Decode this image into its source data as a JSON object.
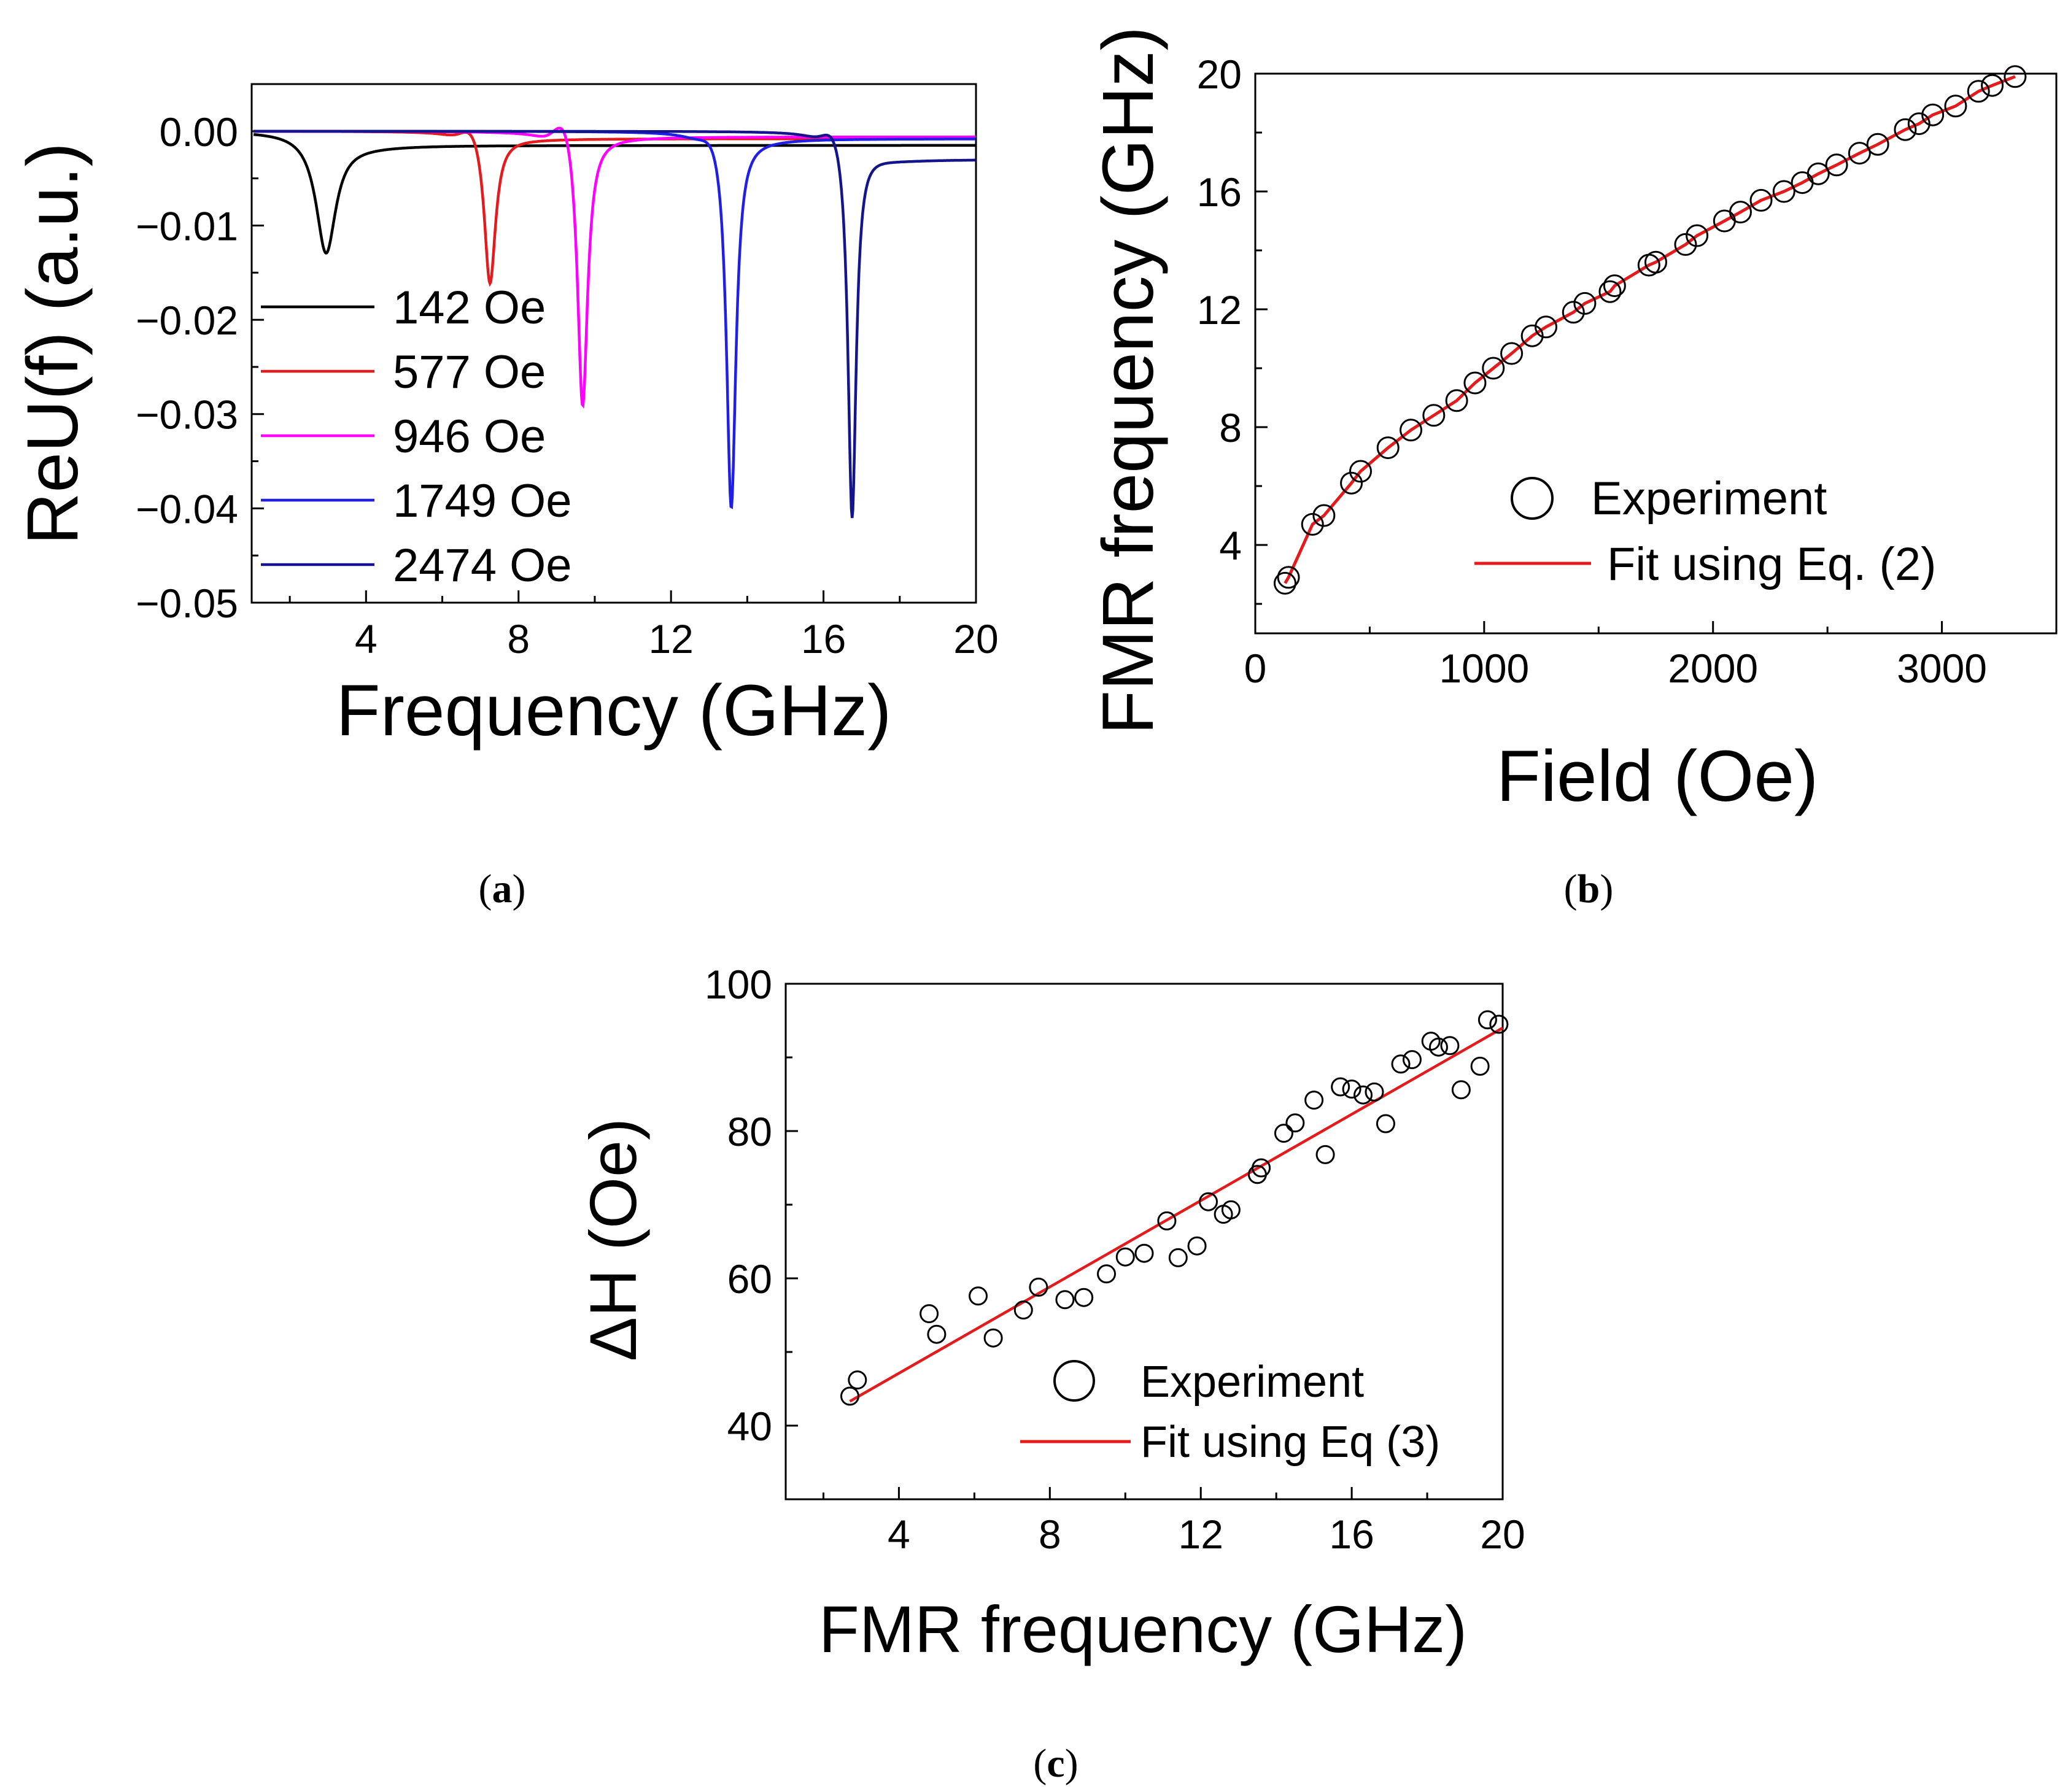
{
  "chart_data": [
    {
      "panel": "(a)",
      "type": "line",
      "xlabel": "Frequency (GHz)",
      "ylabel": "ReU(f) (a.u.)",
      "xlim": [
        1,
        20
      ],
      "ylim": [
        -0.05,
        0.005
      ],
      "xticks": [
        "4",
        "8",
        "12",
        "16",
        "20"
      ],
      "yticks": [
        "0.00",
        "−0.01",
        "−0.02",
        "−0.03",
        "−0.04",
        "−0.05"
      ],
      "series": [
        {
          "name": "142 Oe",
          "color": "#000000",
          "f0": 2.95,
          "width": 0.32,
          "depth": 0.0125,
          "overshoot": 0.0,
          "tail": -0.0015
        },
        {
          "name": "577 Oe",
          "color": "#e41a1c",
          "f0": 7.25,
          "width": 0.18,
          "depth": 0.0162,
          "overshoot": 0.0015,
          "tail": -0.0008
        },
        {
          "name": "946 Oe",
          "color": "#ff00ff",
          "f0": 9.68,
          "width": 0.16,
          "depth": 0.0295,
          "overshoot": 0.0028,
          "tail": -0.0006
        },
        {
          "name": "1749 Oe",
          "color": "#1f1fe6",
          "f0": 13.58,
          "width": 0.15,
          "depth": 0.04,
          "overshoot": 0.0012,
          "tail": -0.0008
        },
        {
          "name": "2474 Oe",
          "color": "#14148c",
          "f0": 16.75,
          "width": 0.13,
          "depth": 0.0405,
          "overshoot": 0.0018,
          "tail": -0.003
        }
      ]
    },
    {
      "panel": "(b)",
      "type": "scatter",
      "xlabel": "Field (Oe)",
      "ylabel": "FMR frequency (GHz)",
      "xlim": [
        0,
        3500
      ],
      "ylim": [
        1,
        20
      ],
      "xticks": [
        "0",
        "1000",
        "2000",
        "3000"
      ],
      "yticks": [
        "4",
        "8",
        "12",
        "16",
        "20"
      ],
      "legend": [
        "Experiment",
        "Fit using Eq. (2)"
      ],
      "fit_color": "#e41a1c",
      "x": [
        130,
        145,
        250,
        300,
        420,
        460,
        580,
        680,
        780,
        880,
        960,
        1040,
        1120,
        1210,
        1270,
        1390,
        1440,
        1550,
        1570,
        1720,
        1750,
        1880,
        1930,
        2050,
        2120,
        2210,
        2310,
        2390,
        2460,
        2540,
        2640,
        2720,
        2840,
        2900,
        2960,
        3060,
        3160,
        3220,
        3320
      ],
      "y": [
        2.7,
        2.9,
        4.7,
        5.0,
        6.1,
        6.5,
        7.3,
        7.9,
        8.4,
        8.9,
        9.5,
        10.0,
        10.5,
        11.1,
        11.4,
        11.9,
        12.2,
        12.6,
        12.8,
        13.5,
        13.6,
        14.2,
        14.5,
        15.0,
        15.3,
        15.7,
        16.0,
        16.3,
        16.6,
        16.9,
        17.3,
        17.6,
        18.1,
        18.3,
        18.6,
        18.9,
        19.4,
        19.6,
        19.9
      ]
    },
    {
      "panel": "(c)",
      "type": "scatter",
      "xlabel": "FMR frequency (GHz)",
      "ylabel": "ΔH (Oe)",
      "xlim": [
        1,
        20
      ],
      "ylim": [
        30,
        100
      ],
      "xticks": [
        "4",
        "8",
        "12",
        "16",
        "20"
      ],
      "yticks": [
        "40",
        "60",
        "80",
        "100"
      ],
      "legend": [
        "Experiment",
        "Fit using Eq (3)"
      ],
      "fit_color": "#e41a1c",
      "fit_line": {
        "x": [
          2.7,
          20.0
        ],
        "y": [
          43.3,
          94.0
        ]
      },
      "x": [
        2.7,
        2.9,
        4.8,
        5.0,
        6.1,
        6.5,
        7.3,
        7.7,
        8.4,
        8.9,
        9.5,
        10.0,
        10.5,
        11.1,
        11.4,
        11.9,
        12.2,
        12.6,
        12.8,
        13.5,
        13.6,
        14.2,
        14.5,
        15.0,
        15.3,
        15.7,
        16.0,
        16.3,
        16.6,
        16.9,
        17.3,
        17.6,
        18.1,
        18.3,
        18.6,
        18.9,
        19.4,
        19.6,
        19.9
      ],
      "y": [
        44,
        46.2,
        55.2,
        52.4,
        57.6,
        51.9,
        55.7,
        58.8,
        57.1,
        57.4,
        60.6,
        62.9,
        63.4,
        67.8,
        62.8,
        64.4,
        70.4,
        68.7,
        69.3,
        74.1,
        75.0,
        79.7,
        81.1,
        84.2,
        76.8,
        86.0,
        85.7,
        84.9,
        85.3,
        81.0,
        89.1,
        89.7,
        92.2,
        91.4,
        91.6,
        85.6,
        88.8,
        95.1,
        94.5
      ]
    }
  ],
  "captions": {
    "a": "(a)",
    "b": "(b)",
    "c": "(c)"
  },
  "cap_letters": {
    "a": "a",
    "b": "b",
    "c": "c"
  }
}
